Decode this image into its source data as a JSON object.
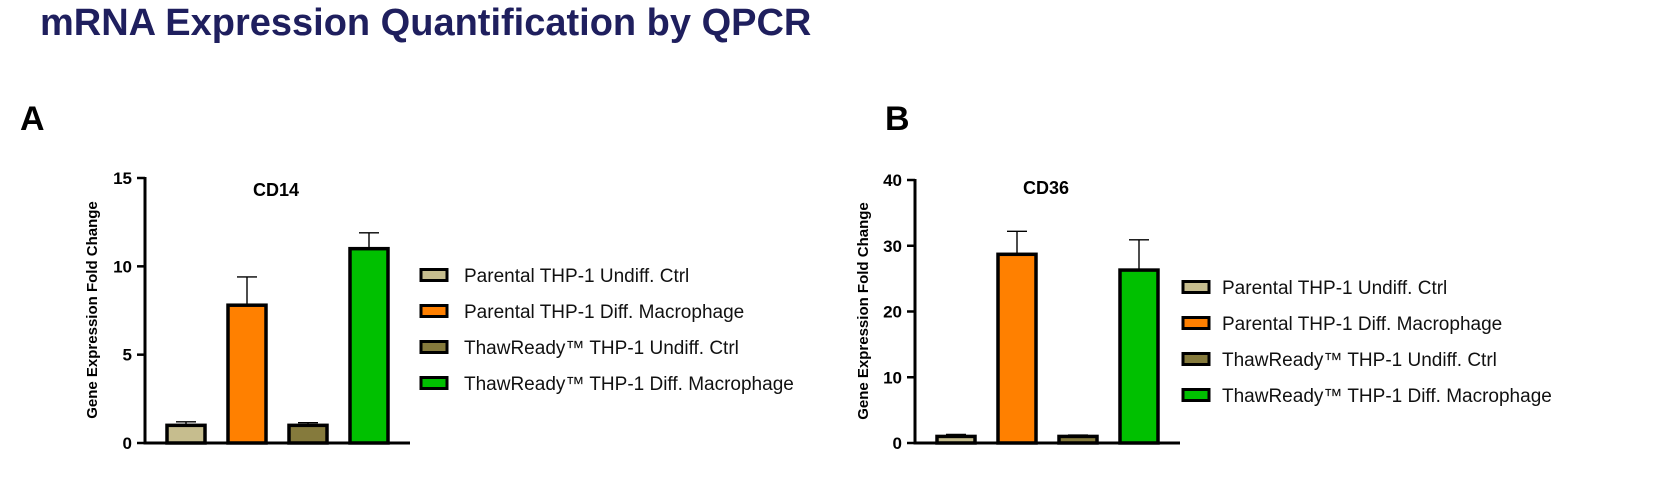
{
  "page_title": "mRNA Expression Quantification by QPCR",
  "panels": [
    {
      "label": "A"
    },
    {
      "label": "B"
    }
  ],
  "chart_data": [
    {
      "type": "bar",
      "title": "CD14",
      "ylabel": "Gene Expression Fold Change",
      "xlabel": "",
      "ylim": [
        0,
        15
      ],
      "yticks": [
        0,
        5,
        10,
        15
      ],
      "categories": [
        "Parental THP-1 Undiff. Ctrl",
        "Parental THP-1 Diff. Macrophage",
        "ThawReady™ THP-1 Undiff. Ctrl",
        "ThawReady™ THP-1 Diff. Macrophage"
      ],
      "values": [
        1.0,
        7.8,
        1.0,
        11.0
      ],
      "errors": [
        0.2,
        1.6,
        0.15,
        0.9
      ],
      "colors": [
        "#c6bd8e",
        "#ff8000",
        "#857a3c",
        "#00c000"
      ],
      "legend": {
        "position": "right",
        "entries": [
          "Parental THP-1 Undiff. Ctrl",
          "Parental THP-1 Diff. Macrophage",
          "ThawReady™ THP-1 Undiff. Ctrl",
          "ThawReady™ THP-1 Diff. Macrophage"
        ]
      },
      "grid": false
    },
    {
      "type": "bar",
      "title": "CD36",
      "ylabel": "Gene Expression Fold Change",
      "xlabel": "",
      "ylim": [
        0,
        40
      ],
      "yticks": [
        0,
        10,
        20,
        30,
        40
      ],
      "categories": [
        "Parental THP-1 Undiff. Ctrl",
        "Parental THP-1 Diff. Macrophage",
        "ThawReady™ THP-1 Undiff. Ctrl",
        "ThawReady™ THP-1 Diff. Macrophage"
      ],
      "values": [
        1.0,
        28.7,
        1.0,
        26.3
      ],
      "errors": [
        0.3,
        3.5,
        0.2,
        4.6
      ],
      "colors": [
        "#c6bd8e",
        "#ff8000",
        "#857a3c",
        "#00c000"
      ],
      "legend": {
        "position": "right",
        "entries": [
          "Parental THP-1 Undiff. Ctrl",
          "Parental THP-1 Diff. Macrophage",
          "ThawReady™ THP-1 Undiff. Ctrl",
          "ThawReady™ THP-1 Diff. Macrophage"
        ]
      },
      "grid": false
    }
  ]
}
